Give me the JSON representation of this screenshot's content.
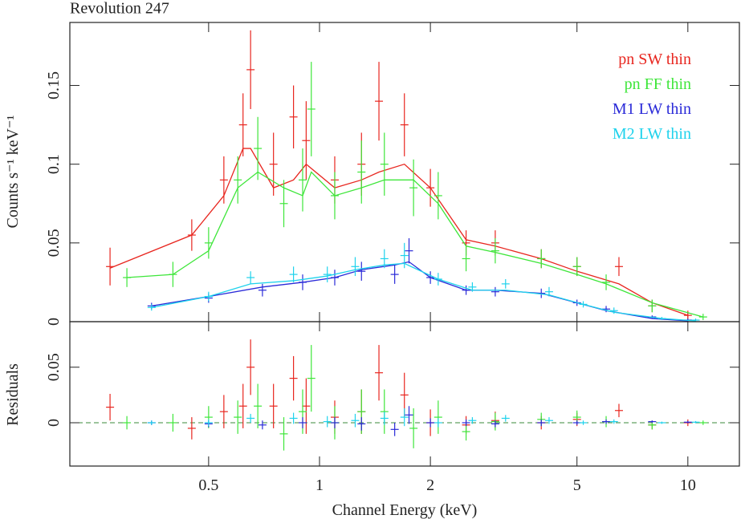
{
  "chart_data": [
    {
      "type": "errorbar",
      "title": "Revolution 247",
      "y_label": "Counts s⁻¹ keV⁻¹",
      "log_x": true,
      "xlim": [
        0.21,
        13.8
      ],
      "ylim": [
        0,
        0.19
      ],
      "xticks": [
        0.5,
        1,
        2,
        5,
        10
      ],
      "yticks": [
        0,
        0.05,
        0.1,
        0.15
      ],
      "legend": "upper right",
      "series": [
        {
          "name": "pn SW thin",
          "color": "#e8261f",
          "x": [
            0.27,
            0.45,
            0.55,
            0.62,
            0.65,
            0.75,
            0.85,
            0.92,
            1.1,
            1.3,
            1.45,
            1.7,
            2.0,
            2.5,
            3.0,
            4.0,
            5.0,
            6.5,
            8.0,
            10.0
          ],
          "values": [
            0.035,
            0.055,
            0.09,
            0.125,
            0.16,
            0.1,
            0.13,
            0.115,
            0.09,
            0.1,
            0.14,
            0.125,
            0.085,
            0.05,
            0.05,
            0.04,
            0.035,
            0.035,
            0.01,
            0.004
          ],
          "errors": [
            0.012,
            0.01,
            0.015,
            0.02,
            0.025,
            0.02,
            0.02,
            0.025,
            0.015,
            0.02,
            0.025,
            0.02,
            0.012,
            0.008,
            0.008,
            0.006,
            0.006,
            0.006,
            0.004,
            0.003
          ],
          "model": [
            0.034,
            0.055,
            0.08,
            0.11,
            0.11,
            0.085,
            0.09,
            0.1,
            0.085,
            0.09,
            0.095,
            0.1,
            0.085,
            0.052,
            0.048,
            0.04,
            0.032,
            0.024,
            0.012,
            0.004
          ]
        },
        {
          "name": "pn FF thin",
          "color": "#3ee63a",
          "x": [
            0.3,
            0.4,
            0.5,
            0.6,
            0.68,
            0.8,
            0.9,
            0.95,
            1.1,
            1.3,
            1.5,
            1.8,
            2.1,
            2.5,
            3.0,
            4.0,
            5.0,
            6.0,
            8.0,
            11.0
          ],
          "values": [
            0.028,
            0.03,
            0.05,
            0.09,
            0.11,
            0.075,
            0.09,
            0.135,
            0.08,
            0.095,
            0.1,
            0.085,
            0.08,
            0.04,
            0.045,
            0.04,
            0.035,
            0.025,
            0.01,
            0.003
          ],
          "errors": [
            0.006,
            0.008,
            0.01,
            0.015,
            0.02,
            0.015,
            0.02,
            0.03,
            0.015,
            0.02,
            0.02,
            0.018,
            0.015,
            0.008,
            0.008,
            0.006,
            0.006,
            0.005,
            0.004,
            0.002
          ],
          "model": [
            0.028,
            0.03,
            0.045,
            0.085,
            0.095,
            0.085,
            0.08,
            0.095,
            0.08,
            0.085,
            0.09,
            0.09,
            0.075,
            0.048,
            0.044,
            0.037,
            0.03,
            0.024,
            0.012,
            0.003
          ]
        },
        {
          "name": "M1 LW thin",
          "color": "#2a2ad8",
          "x": [
            0.35,
            0.5,
            0.7,
            0.9,
            1.1,
            1.3,
            1.6,
            1.75,
            2.0,
            2.5,
            3.0,
            4.0,
            5.0,
            6.0,
            8.0,
            10.0
          ],
          "values": [
            0.01,
            0.015,
            0.02,
            0.025,
            0.028,
            0.032,
            0.03,
            0.045,
            0.028,
            0.02,
            0.019,
            0.018,
            0.012,
            0.008,
            0.003,
            0.001
          ],
          "errors": [
            0.002,
            0.003,
            0.004,
            0.005,
            0.005,
            0.006,
            0.006,
            0.008,
            0.004,
            0.003,
            0.003,
            0.003,
            0.002,
            0.002,
            0.001,
            0.001
          ],
          "model": [
            0.01,
            0.016,
            0.022,
            0.025,
            0.028,
            0.033,
            0.036,
            0.038,
            0.028,
            0.02,
            0.02,
            0.018,
            0.012,
            0.007,
            0.002,
            0.0005
          ]
        },
        {
          "name": "M2 LW thin",
          "color": "#1ed2ec",
          "x": [
            0.35,
            0.5,
            0.65,
            0.85,
            1.05,
            1.25,
            1.5,
            1.7,
            2.1,
            2.6,
            3.2,
            4.2,
            5.2,
            6.3,
            8.5,
            10.5
          ],
          "values": [
            0.009,
            0.016,
            0.028,
            0.03,
            0.03,
            0.035,
            0.04,
            0.042,
            0.027,
            0.022,
            0.024,
            0.019,
            0.011,
            0.007,
            0.002,
            0.001
          ],
          "errors": [
            0.002,
            0.003,
            0.004,
            0.005,
            0.005,
            0.006,
            0.006,
            0.008,
            0.004,
            0.003,
            0.003,
            0.003,
            0.002,
            0.002,
            0.001,
            0.001
          ],
          "model": [
            0.009,
            0.016,
            0.024,
            0.026,
            0.029,
            0.033,
            0.036,
            0.037,
            0.027,
            0.02,
            0.02,
            0.017,
            0.011,
            0.006,
            0.002,
            0.0005
          ]
        }
      ]
    },
    {
      "type": "errorbar",
      "y_label": "Residuals",
      "x_label": "Channel Energy (keV)",
      "log_x": true,
      "xlim": [
        0.21,
        13.8
      ],
      "ylim": [
        -0.039,
        0.091
      ],
      "xticks": [
        0.5,
        1,
        2,
        5,
        10
      ],
      "yticks": [
        0,
        0.05
      ],
      "series": [
        {
          "color": "#e8261f",
          "x": [
            0.27,
            0.45,
            0.55,
            0.62,
            0.65,
            0.75,
            0.85,
            0.92,
            1.1,
            1.3,
            1.45,
            1.7,
            2.0,
            2.5,
            3.0,
            4.0,
            5.0,
            6.5,
            8.0,
            10.0
          ],
          "values": [
            0.014,
            -0.005,
            0.01,
            0.015,
            0.05,
            0.015,
            0.04,
            0.015,
            0.005,
            0.01,
            0.045,
            0.025,
            0,
            -0.002,
            0.002,
            0,
            0.003,
            0.011,
            -0.002,
            0
          ],
          "errors": [
            0.012,
            0.01,
            0.015,
            0.02,
            0.025,
            0.02,
            0.02,
            0.025,
            0.015,
            0.02,
            0.025,
            0.02,
            0.012,
            0.008,
            0.008,
            0.006,
            0.006,
            0.006,
            0.004,
            0.003
          ]
        },
        {
          "color": "#3ee63a",
          "x": [
            0.3,
            0.4,
            0.5,
            0.6,
            0.68,
            0.8,
            0.9,
            0.95,
            1.1,
            1.3,
            1.5,
            1.8,
            2.1,
            2.5,
            3.0,
            4.0,
            5.0,
            6.0,
            8.0,
            11.0
          ],
          "values": [
            0,
            0,
            0.005,
            0.005,
            0.015,
            -0.01,
            0.01,
            0.04,
            0,
            0.01,
            0.01,
            -0.005,
            0.005,
            -0.008,
            0.001,
            0.003,
            0.005,
            0.001,
            -0.002,
            0
          ],
          "errors": [
            0.006,
            0.008,
            0.01,
            0.015,
            0.02,
            0.015,
            0.02,
            0.03,
            0.015,
            0.02,
            0.02,
            0.018,
            0.015,
            0.008,
            0.008,
            0.006,
            0.006,
            0.005,
            0.004,
            0.002
          ]
        },
        {
          "color": "#2a2ad8",
          "x": [
            0.35,
            0.5,
            0.7,
            0.9,
            1.1,
            1.3,
            1.6,
            1.75,
            2.0,
            2.5,
            3.0,
            4.0,
            5.0,
            6.0,
            8.0,
            10.0
          ],
          "values": [
            0,
            -0.001,
            -0.002,
            0,
            0,
            -0.001,
            -0.006,
            0.007,
            0,
            0,
            -0.001,
            0,
            0,
            0.001,
            0.001,
            0.0005
          ],
          "errors": [
            0.002,
            0.003,
            0.004,
            0.005,
            0.005,
            0.006,
            0.006,
            0.008,
            0.004,
            0.003,
            0.003,
            0.003,
            0.002,
            0.002,
            0.001,
            0.001
          ]
        },
        {
          "color": "#1ed2ec",
          "x": [
            0.35,
            0.5,
            0.65,
            0.85,
            1.05,
            1.25,
            1.5,
            1.7,
            2.1,
            2.6,
            3.2,
            4.2,
            5.2,
            6.3,
            8.5,
            10.5
          ],
          "values": [
            0,
            0,
            0.004,
            0.004,
            0.001,
            0.002,
            0.004,
            0.005,
            0,
            0.002,
            0.004,
            0.002,
            0,
            0.001,
            0,
            0.0005
          ],
          "errors": [
            0.002,
            0.003,
            0.004,
            0.005,
            0.005,
            0.006,
            0.006,
            0.008,
            0.004,
            0.003,
            0.003,
            0.003,
            0.002,
            0.002,
            0.001,
            0.001
          ]
        }
      ]
    }
  ]
}
